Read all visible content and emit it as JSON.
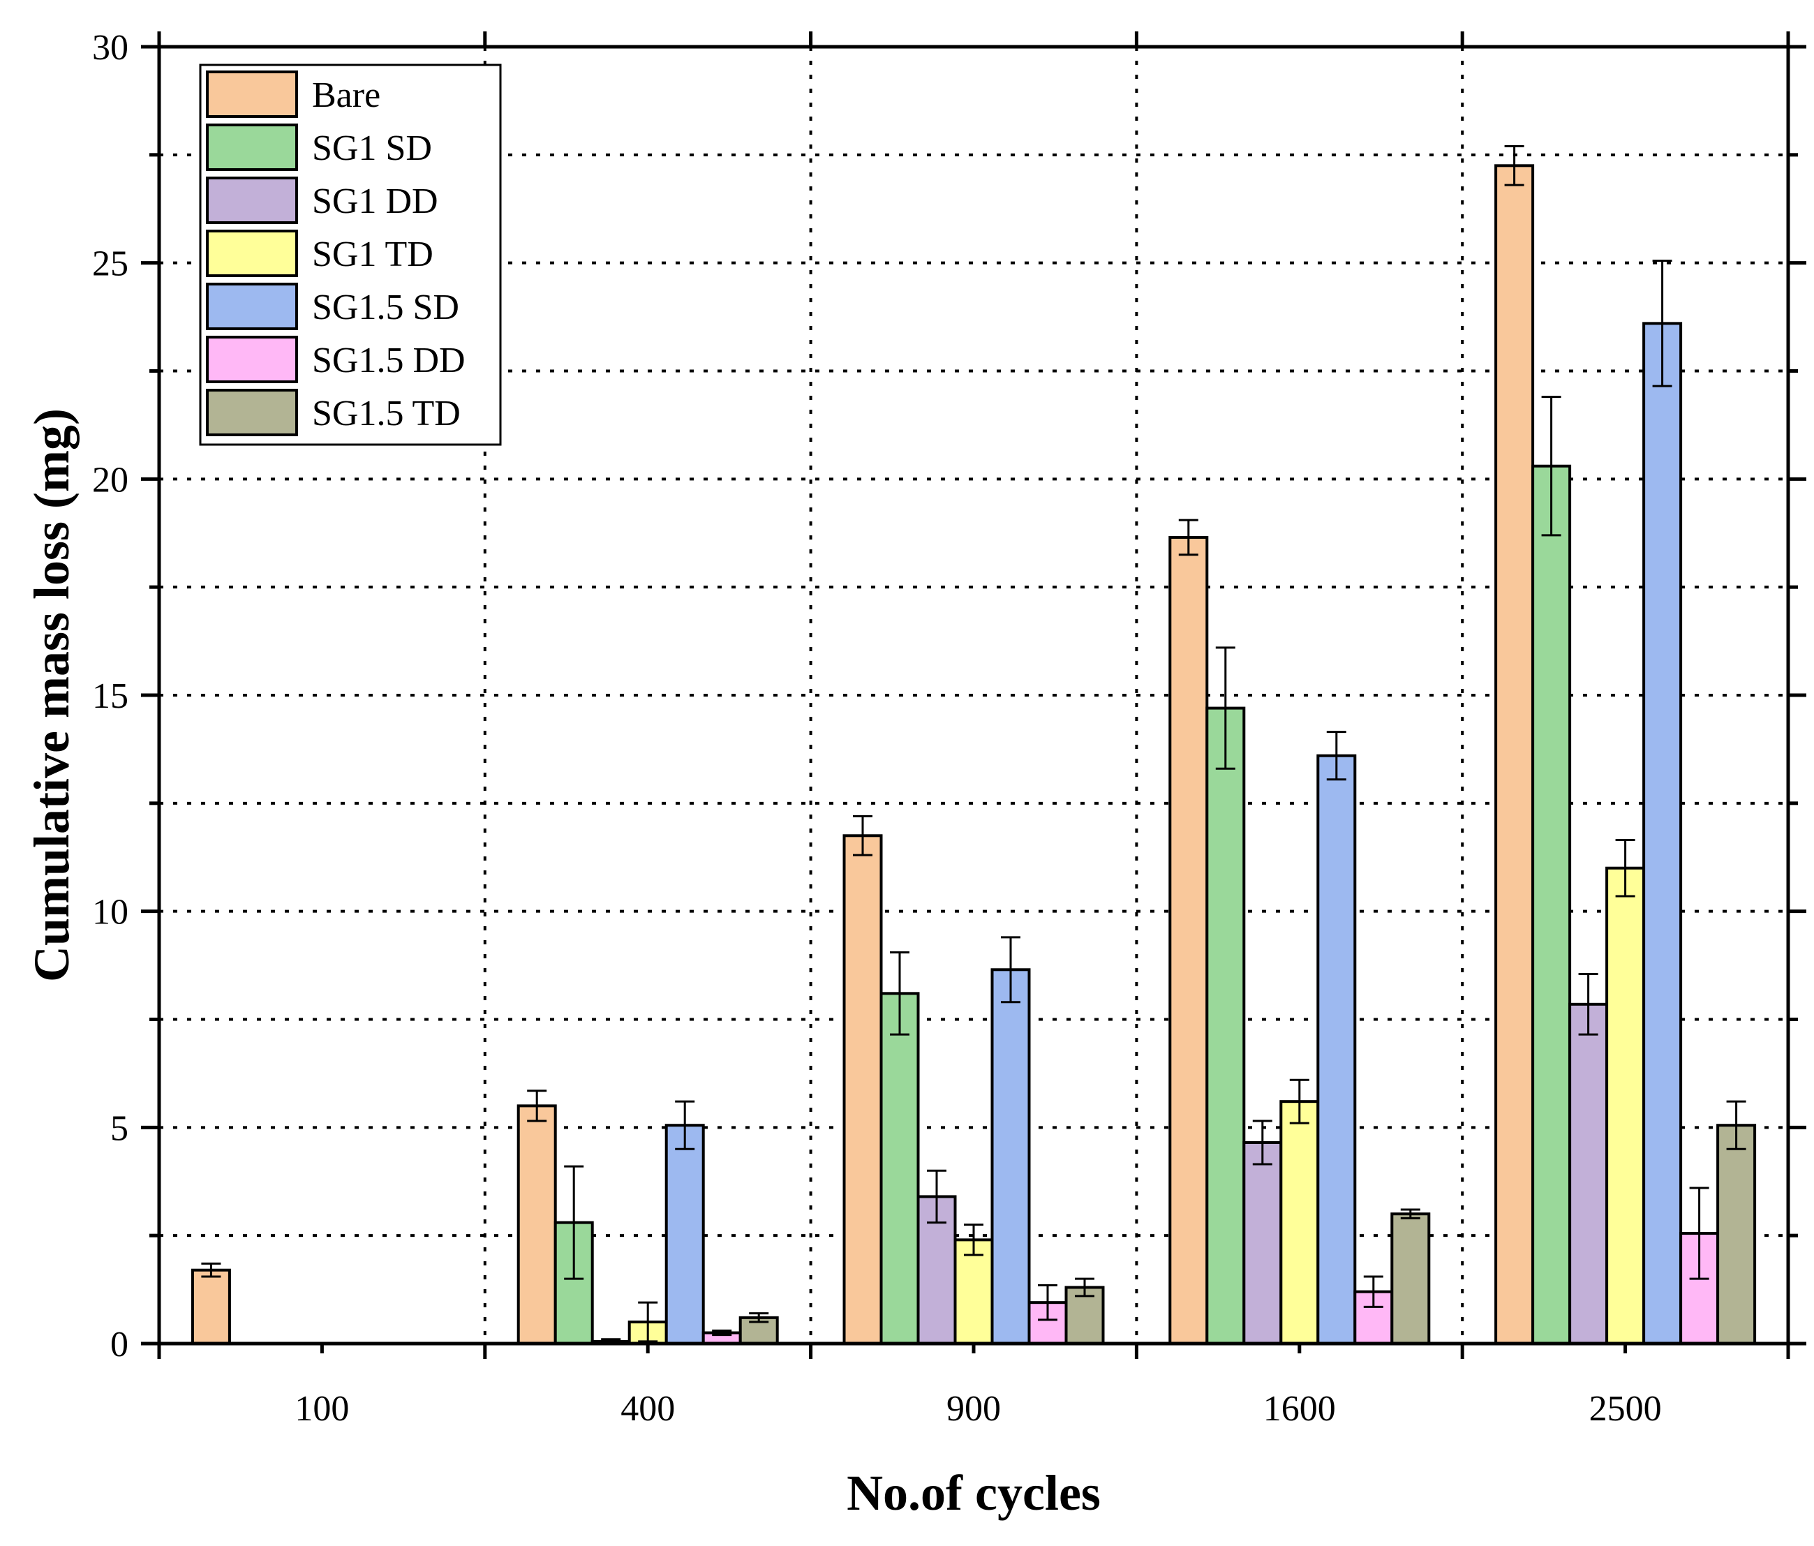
{
  "chart_data": {
    "type": "bar",
    "title": "",
    "xlabel": "No.of cycles",
    "ylabel": "Cumulative mass loss (mg)",
    "categories": [
      "100",
      "400",
      "900",
      "1600",
      "2500"
    ],
    "ylim": [
      0,
      30
    ],
    "yticks": [
      "0",
      "5",
      "10",
      "15",
      "20",
      "25",
      "30"
    ],
    "grid": true,
    "legend_position": "top-left",
    "series": [
      {
        "name": "Bare",
        "color": "#F9C89B",
        "values": [
          1.7,
          5.5,
          11.75,
          18.65,
          27.25
        ],
        "errors": [
          0.15,
          0.35,
          0.45,
          0.4,
          0.45
        ]
      },
      {
        "name": "SG1 SD",
        "color": "#9AD89A",
        "values": [
          0,
          2.8,
          8.1,
          14.7,
          20.3
        ],
        "errors": [
          0,
          1.3,
          0.95,
          1.4,
          1.6
        ]
      },
      {
        "name": "SG1 DD",
        "color": "#C2B0D8",
        "values": [
          0,
          0.05,
          3.4,
          4.65,
          7.85
        ],
        "errors": [
          0,
          0.05,
          0.6,
          0.5,
          0.7
        ]
      },
      {
        "name": "SG1 TD",
        "color": "#FFFF99",
        "values": [
          0,
          0.5,
          2.4,
          5.6,
          11.0
        ],
        "errors": [
          0,
          0.45,
          0.35,
          0.5,
          0.65
        ]
      },
      {
        "name": "SG1.5 SD",
        "color": "#9DB9F0",
        "values": [
          0,
          5.05,
          8.65,
          13.6,
          23.6
        ],
        "errors": [
          0,
          0.55,
          0.75,
          0.55,
          1.45
        ]
      },
      {
        "name": "SG1.5 DD",
        "color": "#FFB8F6",
        "values": [
          0,
          0.25,
          0.95,
          1.2,
          2.55
        ],
        "errors": [
          0,
          0.05,
          0.4,
          0.35,
          1.05
        ]
      },
      {
        "name": "SG1.5 TD",
        "color": "#B2B494",
        "values": [
          0,
          0.6,
          1.3,
          3.0,
          5.05
        ],
        "errors": [
          0,
          0.1,
          0.2,
          0.1,
          0.55
        ]
      }
    ]
  }
}
